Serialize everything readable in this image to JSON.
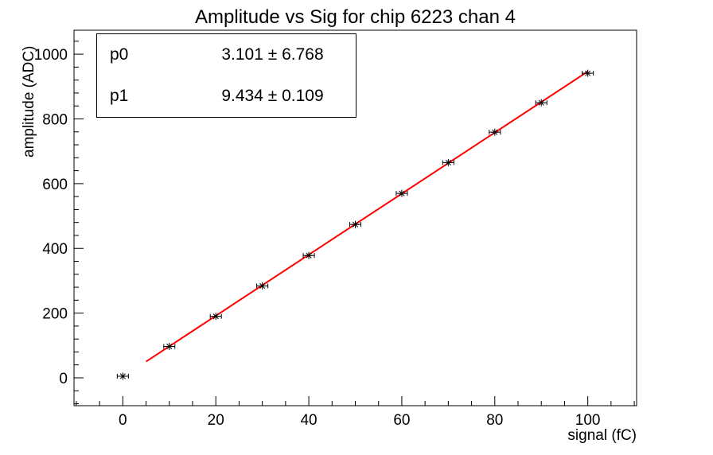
{
  "stats_box": {
    "rows": [
      {
        "name": "p0",
        "value": "3.101 ± 6.768"
      },
      {
        "name": "p1",
        "value": "9.434 ± 0.109"
      }
    ]
  },
  "chart_data": {
    "type": "scatter",
    "title": "Amplitude vs Sig for chip 6223 chan 4",
    "xlabel": "signal (fC)",
    "ylabel": "amplitude (ADC)",
    "xlim": [
      -10.5,
      110.5
    ],
    "ylim": [
      -86,
      1074
    ],
    "x_ticks": [
      0,
      20,
      40,
      60,
      80,
      100
    ],
    "y_ticks": [
      0,
      200,
      400,
      600,
      800,
      1000
    ],
    "x_minor_step": 5,
    "y_minor_step": 40,
    "grid": false,
    "legend": "none",
    "points": {
      "x": [
        0,
        10,
        20,
        30,
        40,
        50,
        60,
        70,
        80,
        90,
        100
      ],
      "y": [
        5,
        97,
        190,
        284,
        378,
        474,
        570,
        665,
        759,
        850,
        941
      ],
      "x_err": 1.2,
      "marker": "asterisk",
      "color": "#000000"
    },
    "fit": {
      "label": "linear",
      "p0": 3.101,
      "p0_err": 6.768,
      "p1": 9.434,
      "p1_err": 0.109,
      "x_range": [
        5,
        100
      ],
      "color": "#ff0000"
    }
  }
}
